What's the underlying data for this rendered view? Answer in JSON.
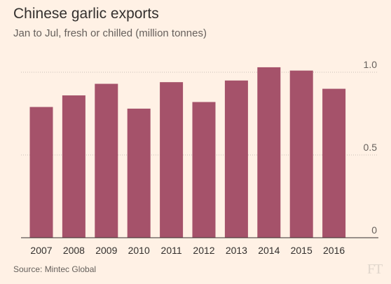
{
  "chart_data": {
    "type": "bar",
    "title": "Chinese garlic exports",
    "subtitle": "Jan to Jul, fresh or chilled (million tonnes)",
    "xlabel": "",
    "ylabel": "",
    "categories": [
      "2007",
      "2008",
      "2009",
      "2010",
      "2011",
      "2012",
      "2013",
      "2014",
      "2015",
      "2016"
    ],
    "values": [
      0.79,
      0.86,
      0.93,
      0.78,
      0.94,
      0.82,
      0.95,
      1.03,
      1.01,
      0.9
    ],
    "ylim": [
      0,
      1.05
    ],
    "yticks": [
      0,
      0.5,
      1.0
    ],
    "ytick_labels": [
      "0",
      "0.5",
      "1.0"
    ],
    "grid": true,
    "bar_color": "#a5526a",
    "source": "Source: Mintec Global"
  },
  "branding": {
    "logo": "FT"
  }
}
